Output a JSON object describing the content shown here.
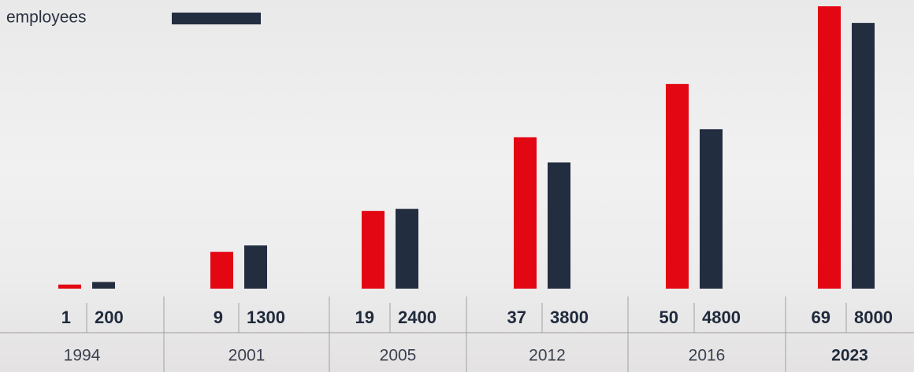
{
  "chart_data": {
    "type": "bar",
    "categories": [
      "1994",
      "2001",
      "2005",
      "2012",
      "2016",
      "2023"
    ],
    "series": [
      {
        "color": "#e30613",
        "values": [
          1,
          9,
          19,
          37,
          50,
          69
        ]
      },
      {
        "name": "employees",
        "color": "#232d40",
        "axis": "y2",
        "values": [
          200,
          1300,
          2400,
          3800,
          4800,
          8000
        ]
      }
    ],
    "ylim": [
      0,
      69
    ],
    "y2lim": [
      0,
      8500
    ]
  }
}
